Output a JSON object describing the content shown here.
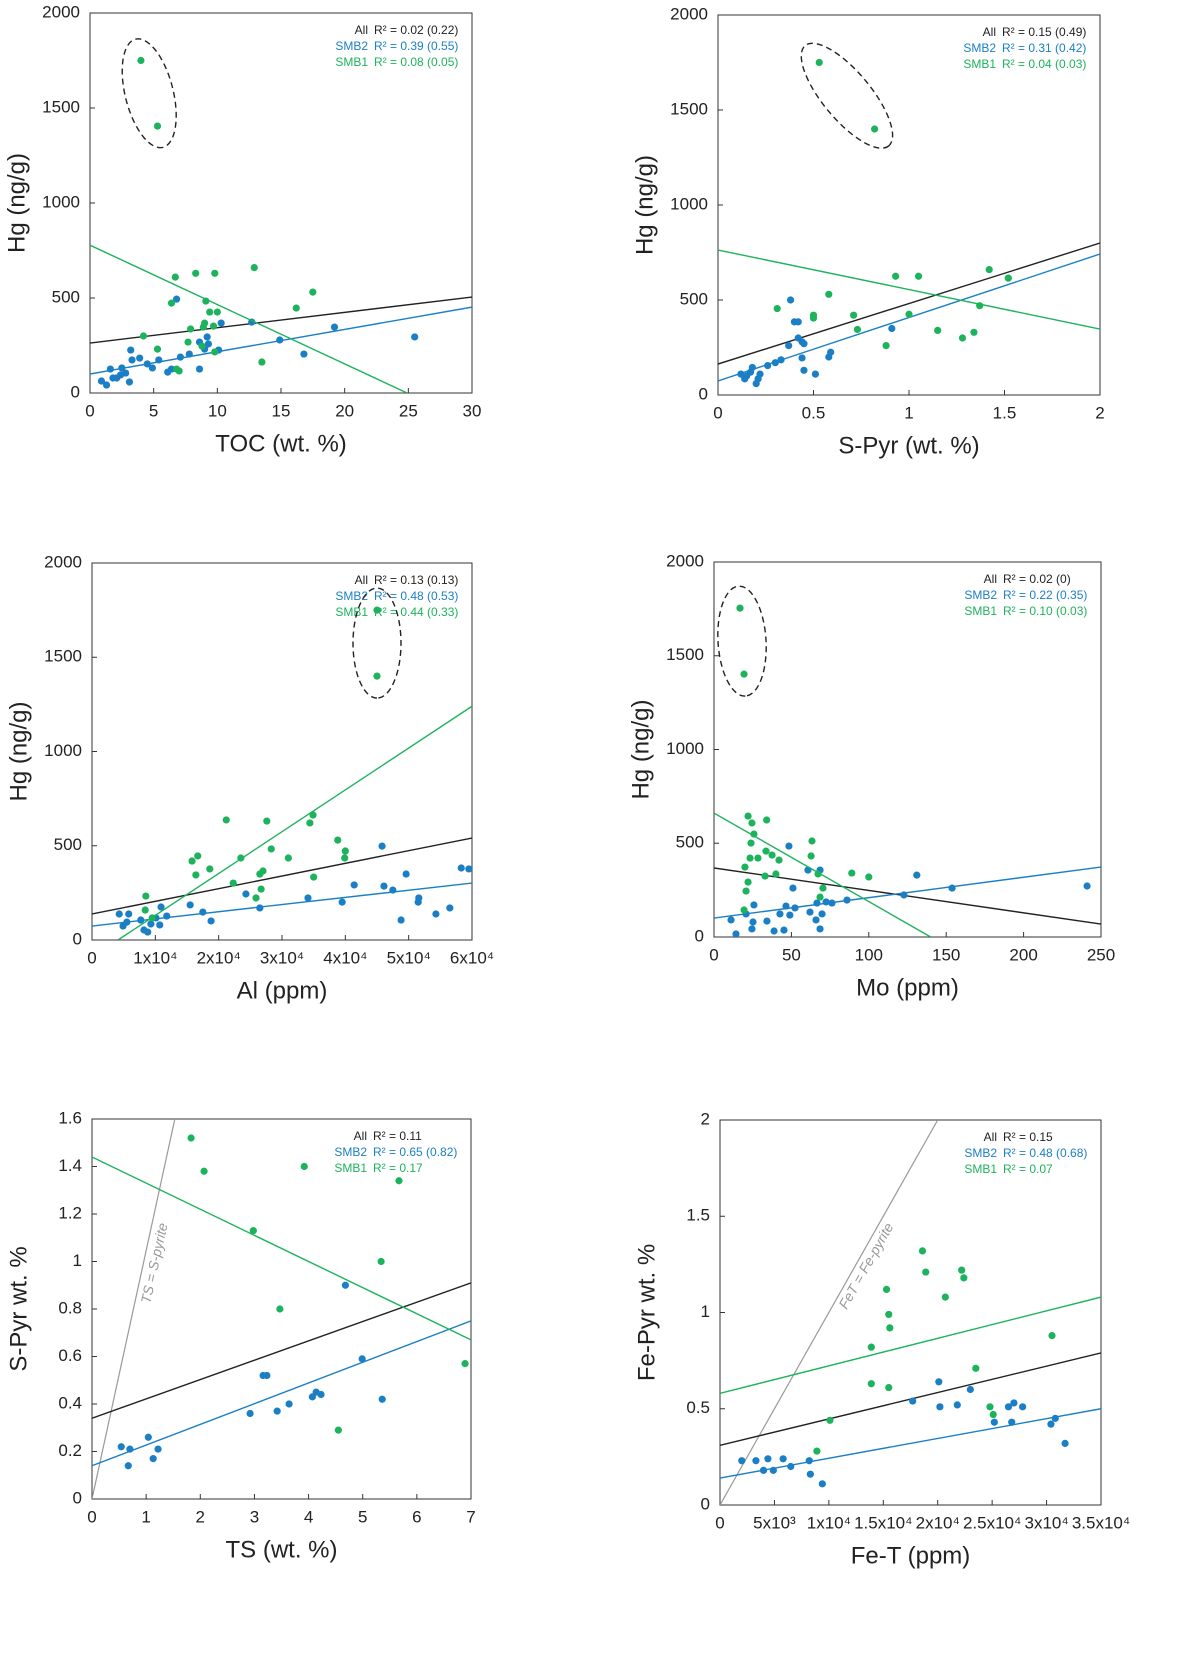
{
  "chart_data": [
    {
      "type": "scatter",
      "x_label": "TOC (wt. %)",
      "y_label": "Hg (ng/g)",
      "xlim": [
        0,
        30
      ],
      "ylim": [
        0,
        2000
      ],
      "xticks": [
        0,
        5,
        10,
        15,
        20,
        25,
        30
      ],
      "yticks": [
        0,
        500,
        1000,
        1500,
        2000
      ],
      "circled_outliers": true,
      "series": [
        {
          "name": "All",
          "color": "#222222",
          "r2_label": "R² = 0.02 (0.22)",
          "fit": {
            "x": [
              0,
              30
            ],
            "y": [
              263,
              505
            ]
          }
        },
        {
          "name": "SMB2",
          "color": "#1b7fc6",
          "r2_label": "R² = 0.39 (0.55)",
          "fit": {
            "x": [
              0,
              30
            ],
            "y": [
              100,
              452
            ]
          },
          "x": [
            0.9,
            1.3,
            1.6,
            1.8,
            2.1,
            2.4,
            2.5,
            2.8,
            3.2,
            3.3,
            3.1,
            3.9,
            4.5,
            4.9,
            5.4,
            6.1,
            6.4,
            6.8,
            7.1,
            7.8,
            8.6,
            8.6,
            9.0,
            9.3,
            9.2,
            10.1,
            10.3,
            12.7,
            14.9,
            16.8,
            19.2,
            25.5
          ],
          "values": [
            63,
            42,
            126,
            79,
            79,
            95,
            132,
            105,
            226,
            174,
            58,
            184,
            153,
            132,
            174,
            110,
            126,
            494,
            189,
            205,
            126,
            268,
            231,
            258,
            295,
            226,
            368,
            373,
            279,
            205,
            347,
            295
          ]
        },
        {
          "name": "SMB1",
          "color": "#1db35c",
          "r2_label": "R² = 0.08 (0.05)",
          "fit": {
            "x": [
              0,
              24.9
            ],
            "y": [
              778,
              0
            ]
          },
          "x": [
            4.0,
            5.3,
            6.7,
            8.3,
            9.8,
            12.9,
            16.2,
            17.5,
            6.4,
            4.2,
            5.3,
            6.8,
            7.0,
            13.5,
            7.7,
            7.9,
            8.8,
            8.9,
            9.1,
            9.4,
            9.7,
            9.8,
            10.0,
            9.0
          ],
          "values": [
            1750,
            1405,
            610,
            630,
            630,
            660,
            447,
            531,
            473,
            300,
            231,
            126,
            116,
            163,
            268,
            337,
            247,
            347,
            484,
            426,
            352,
            216,
            426,
            368
          ]
        }
      ]
    },
    {
      "type": "scatter",
      "x_label": "S-Pyr (wt. %)",
      "y_label": "Hg (ng/g)",
      "xlim": [
        0,
        2
      ],
      "ylim": [
        0,
        2000
      ],
      "xticks": [
        0,
        0.5,
        1,
        1.5,
        2
      ],
      "yticks": [
        0,
        500,
        1000,
        1500,
        2000
      ],
      "circled_outliers": true,
      "series": [
        {
          "name": "All",
          "color": "#222222",
          "r2_label": "R² = 0.15 (0.49)",
          "fit": {
            "x": [
              0,
              2
            ],
            "y": [
              163,
              800
            ]
          }
        },
        {
          "name": "SMB2",
          "color": "#1b7fc6",
          "r2_label": "R² = 0.31 (0.42)",
          "fit": {
            "x": [
              0,
              2
            ],
            "y": [
              74,
              742
            ]
          },
          "x": [
            0.12,
            0.14,
            0.15,
            0.17,
            0.18,
            0.2,
            0.21,
            0.22,
            0.26,
            0.3,
            0.33,
            0.37,
            0.38,
            0.4,
            0.42,
            0.42,
            0.44,
            0.45,
            0.44,
            0.45,
            0.51,
            0.58,
            0.59,
            0.91
          ],
          "values": [
            110,
            85,
            100,
            120,
            145,
            60,
            85,
            110,
            155,
            170,
            185,
            260,
            500,
            385,
            385,
            300,
            280,
            270,
            195,
            130,
            110,
            200,
            225,
            350
          ]
        },
        {
          "name": "SMB1",
          "color": "#1db35c",
          "r2_label": "R² = 0.04 (0.03)",
          "fit": {
            "x": [
              0,
              2
            ],
            "y": [
              763,
              347
            ]
          },
          "x": [
            0.53,
            0.82,
            0.31,
            0.5,
            0.5,
            0.58,
            0.71,
            0.73,
            0.88,
            0.93,
            1.05,
            1.0,
            1.15,
            1.28,
            1.34,
            1.37,
            1.42,
            1.52
          ],
          "values": [
            1750,
            1400,
            455,
            420,
            405,
            530,
            420,
            345,
            260,
            625,
            625,
            425,
            340,
            300,
            330,
            470,
            660,
            615
          ]
        }
      ]
    },
    {
      "type": "scatter",
      "x_label": "Al (ppm)",
      "y_label": "Hg (ng/g)",
      "xlim": [
        0,
        60000
      ],
      "ylim": [
        0,
        2000
      ],
      "xticks": [
        0,
        {
          "value": 10000,
          "label": "1x10⁴"
        },
        {
          "value": 20000,
          "label": "2x10⁴"
        },
        {
          "value": 30000,
          "label": "3x10⁴"
        },
        {
          "value": 40000,
          "label": "4x10⁴"
        },
        {
          "value": 50000,
          "label": "5x10⁴"
        },
        {
          "value": 60000,
          "label": "6x10⁴"
        }
      ],
      "yticks": [
        0,
        500,
        1000,
        1500,
        2000
      ],
      "circled_outliers": true,
      "series": [
        {
          "name": "All",
          "color": "#222222",
          "r2_label": "R² = 0.13 (0.13)",
          "fit": {
            "x": [
              0,
              60000
            ],
            "y": [
              138,
              541
            ]
          }
        },
        {
          "name": "SMB2",
          "color": "#1b7fc6",
          "r2_label": "R² = 0.48 (0.53)",
          "fit": {
            "x": [
              0,
              60000
            ],
            "y": [
              74,
              302
            ]
          },
          "x": [
            4300,
            4900,
            5500,
            5800,
            7700,
            8200,
            8800,
            9300,
            10100,
            10700,
            10900,
            11800,
            15500,
            17500,
            18800,
            24300,
            26500,
            34100,
            39500,
            41400,
            45800,
            46100,
            47500,
            48800,
            49600,
            51500,
            51600,
            54300,
            56500,
            58300,
            59500
          ],
          "values": [
            138,
            74,
            95,
            138,
            106,
            53,
            42,
            85,
            117,
            80,
            175,
            127,
            186,
            148,
            101,
            244,
            170,
            223,
            201,
            292,
            498,
            286,
            265,
            106,
            350,
            201,
            223,
            138,
            170,
            382,
            377
          ]
        },
        {
          "name": "SMB1",
          "color": "#1db35c",
          "r2_label": "R² = 0.44 (0.33)",
          "fit": {
            "x": [
              4100,
              60000
            ],
            "y": [
              0,
              1240
            ]
          },
          "x": [
            45000,
            45000,
            21200,
            27600,
            34900,
            34400,
            38800,
            40000,
            39900,
            15800,
            16700,
            18600,
            23500,
            28300,
            31000,
            22300,
            26500,
            27000,
            26700,
            25900,
            16400,
            35000,
            8500,
            8400,
            9500
          ],
          "values": [
            1750,
            1400,
            637,
            631,
            663,
            621,
            530,
            472,
            435,
            419,
            446,
            377,
            435,
            483,
            435,
            302,
            350,
            366,
            270,
            223,
            345,
            334,
            233,
            159,
            117
          ]
        }
      ]
    },
    {
      "type": "scatter",
      "x_label": "Mo (ppm)",
      "y_label": "Hg (ng/g)",
      "xlim": [
        0,
        250
      ],
      "ylim": [
        0,
        2000
      ],
      "xticks": [
        0,
        50,
        100,
        150,
        200,
        250
      ],
      "yticks": [
        0,
        500,
        1000,
        1500,
        2000
      ],
      "circled_outliers": true,
      "series": [
        {
          "name": "All",
          "color": "#222222",
          "r2_label": "R² = 0.02 (0)",
          "fit": {
            "x": [
              0,
              250
            ],
            "y": [
              368,
              69
            ]
          }
        },
        {
          "name": "SMB2",
          "color": "#1b7fc6",
          "r2_label": "R² = 0.22 (0.35)",
          "fit": {
            "x": [
              0,
              250
            ],
            "y": [
              101,
              373
            ]
          },
          "x": [
            11,
            14.2,
            20.7,
            25.2,
            25.8,
            24.5,
            34.2,
            38.8,
            42.6,
            45.2,
            49,
            46.5,
            51,
            52.3,
            60.7,
            62,
            65.9,
            66.5,
            68.5,
            69.8,
            72.4,
            76.2,
            85.9,
            48.4,
            122.7,
            131,
            153.8,
            241,
            68.5
          ],
          "values": [
            91,
            16,
            123,
            80,
            171,
            43,
            85,
            32,
            123,
            37,
            117,
            165,
            261,
            155,
            357,
            133,
            91,
            181,
            43,
            123,
            187,
            181,
            197,
            485,
            224,
            330,
            261,
            272,
            357
          ]
        },
        {
          "name": "SMB1",
          "color": "#1db35c",
          "r2_label": "R² = 0.10 (0.03)",
          "fit": {
            "x": [
              0,
              140
            ],
            "y": [
              661,
              0
            ]
          },
          "x": [
            16.8,
            19.4,
            22,
            24.5,
            34,
            23.9,
            28.4,
            23.3,
            33.6,
            22,
            20,
            19.4,
            20.7,
            37.5,
            42,
            40,
            33,
            63.3,
            62.7,
            67.2,
            70.4,
            68.5,
            89,
            100,
            25.8
          ],
          "values": [
            1754,
            1402,
            645,
            608,
            624,
            501,
            421,
            421,
            458,
            293,
            373,
            144,
            245,
            437,
            410,
            336,
            325,
            512,
            432,
            336,
            261,
            213,
            341,
            320,
            549
          ]
        }
      ]
    },
    {
      "type": "scatter",
      "x_label": "TS (wt. %)",
      "y_label": "S-Pyr wt. %",
      "xlim": [
        0,
        7
      ],
      "ylim": [
        0,
        1.6
      ],
      "xticks": [
        0,
        1,
        2,
        3,
        4,
        5,
        6,
        7
      ],
      "yticks": [
        0,
        0.2,
        0.4,
        0.6,
        0.8,
        1,
        1.2,
        1.4,
        1.6
      ],
      "circled_outliers": false,
      "ref_label": "TS = S-pyrite",
      "ref_line": {
        "x": [
          0,
          1.53
        ],
        "y": [
          0,
          1.6
        ]
      },
      "series": [
        {
          "name": "All",
          "color": "#222222",
          "r2_label": "R² = 0.11",
          "fit": {
            "x": [
              0,
              7
            ],
            "y": [
              0.34,
              0.91
            ]
          }
        },
        {
          "name": "SMB2",
          "color": "#1b7fc6",
          "r2_label": "R² = 0.65 (0.82)",
          "fit": {
            "x": [
              0,
              7
            ],
            "y": [
              0.14,
              0.75
            ]
          },
          "x": [
            0.54,
            0.7,
            0.67,
            1.04,
            1.13,
            1.22,
            2.92,
            3.16,
            3.23,
            3.42,
            3.64,
            4.07,
            4.14,
            4.23,
            4.68,
            4.99,
            5.36
          ],
          "values": [
            0.22,
            0.21,
            0.14,
            0.26,
            0.17,
            0.21,
            0.36,
            0.52,
            0.52,
            0.37,
            0.4,
            0.43,
            0.45,
            0.44,
            0.9,
            0.59,
            0.42
          ]
        },
        {
          "name": "SMB1",
          "color": "#1db35c",
          "r2_label": "R² = 0.17",
          "fit": {
            "x": [
              0,
              7
            ],
            "y": [
              1.44,
              0.67
            ]
          },
          "x": [
            1.83,
            2.07,
            2.98,
            3.47,
            3.92,
            5.34,
            5.67,
            4.55,
            6.89
          ],
          "values": [
            1.52,
            1.38,
            1.13,
            0.8,
            1.4,
            1.0,
            1.34,
            0.29,
            0.57
          ]
        }
      ]
    },
    {
      "type": "scatter",
      "x_label": "Fe-T (ppm)",
      "y_label": "Fe-Pyr wt. %",
      "xlim": [
        0,
        35000
      ],
      "ylim": [
        0,
        2
      ],
      "xticks": [
        0,
        {
          "value": 5000,
          "label": "5x10³"
        },
        {
          "value": 10000,
          "label": "1x10⁴"
        },
        {
          "value": 15000,
          "label": "1.5x10⁴"
        },
        {
          "value": 20000,
          "label": "2x10⁴"
        },
        {
          "value": 25000,
          "label": "2.5x10⁴"
        },
        {
          "value": 30000,
          "label": "3x10⁴"
        },
        {
          "value": 35000,
          "label": "3.5x10⁴"
        }
      ],
      "yticks": [
        0,
        0.5,
        1,
        1.5,
        2
      ],
      "circled_outliers": false,
      "ref_label": "FeT = Fe-pyrite",
      "ref_line": {
        "x": [
          0,
          20000
        ],
        "y": [
          0,
          2
        ]
      },
      "series": [
        {
          "name": "All",
          "color": "#222222",
          "r2_label": "R² = 0.15",
          "fit": {
            "x": [
              0,
              35000
            ],
            "y": [
              0.31,
              0.79
            ]
          }
        },
        {
          "name": "SMB2",
          "color": "#1b7fc6",
          "r2_label": "R² = 0.48 (0.68)",
          "fit": {
            "x": [
              0,
              35000
            ],
            "y": [
              0.14,
              0.5
            ]
          },
          "x": [
            2000,
            3300,
            4000,
            4400,
            4900,
            5800,
            6500,
            8200,
            8300,
            9400,
            17700,
            20100,
            20200,
            21800,
            23000,
            25200,
            26500,
            27000,
            26800,
            27800,
            30400,
            30800,
            31700
          ],
          "values": [
            0.23,
            0.23,
            0.18,
            0.24,
            0.18,
            0.24,
            0.2,
            0.23,
            0.16,
            0.11,
            0.54,
            0.64,
            0.51,
            0.52,
            0.6,
            0.43,
            0.51,
            0.53,
            0.43,
            0.51,
            0.42,
            0.45,
            0.32
          ]
        },
        {
          "name": "SMB1",
          "color": "#1db35c",
          "r2_label": "R² = 0.07",
          "fit": {
            "x": [
              0,
              35000
            ],
            "y": [
              0.58,
              1.08
            ]
          },
          "x": [
            18600,
            18900,
            22200,
            22400,
            20700,
            15300,
            15500,
            15600,
            13900,
            13900,
            15500,
            23500,
            24800,
            25100,
            30500,
            10100,
            8900
          ],
          "values": [
            1.32,
            1.21,
            1.22,
            1.18,
            1.08,
            1.12,
            0.99,
            0.92,
            0.82,
            0.63,
            0.61,
            0.71,
            0.51,
            0.47,
            0.88,
            0.44,
            0.28
          ]
        }
      ]
    }
  ]
}
